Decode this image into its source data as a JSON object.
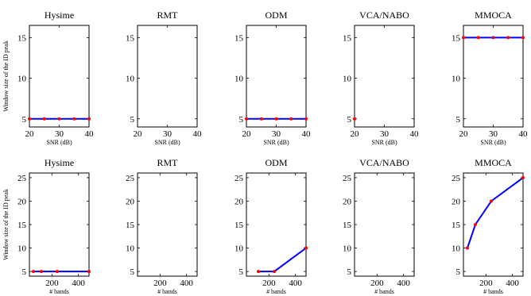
{
  "chart_data": [
    {
      "type": "line",
      "title": "Hysime",
      "xlabel": "SNR (dB)",
      "ylabel": "Window size of the ID peak",
      "xlim": [
        20,
        40
      ],
      "ylim": [
        4,
        16.5
      ],
      "xticks": [
        20,
        30,
        40
      ],
      "yticks": [
        5,
        10,
        15
      ],
      "series": [
        {
          "x": [
            20,
            25,
            30,
            35,
            40
          ],
          "y": [
            5,
            5,
            5,
            5,
            5
          ]
        }
      ]
    },
    {
      "type": "line",
      "title": "RMT",
      "xlabel": "SNR (dB)",
      "ylabel": "",
      "xlim": [
        20,
        40
      ],
      "ylim": [
        4,
        16.5
      ],
      "xticks": [
        20,
        30,
        40
      ],
      "yticks": [
        5,
        10,
        15
      ],
      "series": []
    },
    {
      "type": "line",
      "title": "ODM",
      "xlabel": "SNR (dB)",
      "ylabel": "",
      "xlim": [
        20,
        40
      ],
      "ylim": [
        4,
        16.5
      ],
      "xticks": [
        20,
        30,
        40
      ],
      "yticks": [
        5,
        10,
        15
      ],
      "series": [
        {
          "x": [
            20,
            25,
            30,
            35,
            40
          ],
          "y": [
            5,
            5,
            5,
            5,
            5
          ]
        }
      ]
    },
    {
      "type": "line",
      "title": "VCA/NABO",
      "xlabel": "SNR (dB)",
      "ylabel": "",
      "xlim": [
        20,
        40
      ],
      "ylim": [
        4,
        16.5
      ],
      "xticks": [
        20,
        30,
        40
      ],
      "yticks": [
        5,
        10,
        15
      ],
      "series": [
        {
          "x": [
            20
          ],
          "y": [
            5
          ]
        }
      ]
    },
    {
      "type": "line",
      "title": "MMOCA",
      "xlabel": "SNR (dB)",
      "ylabel": "",
      "xlim": [
        20,
        40
      ],
      "ylim": [
        4,
        16.5
      ],
      "xticks": [
        20,
        30,
        40
      ],
      "yticks": [
        5,
        10,
        15
      ],
      "series": [
        {
          "x": [
            20,
            25,
            30,
            35,
            40
          ],
          "y": [
            15,
            15,
            15,
            15,
            15
          ]
        }
      ]
    },
    {
      "type": "line",
      "title": "Hysime",
      "xlabel": "# bands",
      "ylabel": "Window size of the ID peak",
      "xlim": [
        30,
        480
      ],
      "ylim": [
        4,
        26
      ],
      "xticks": [
        200,
        400
      ],
      "yticks": [
        5,
        10,
        15,
        20,
        25
      ],
      "series": [
        {
          "x": [
            60,
            120,
            240,
            480
          ],
          "y": [
            5,
            5,
            5,
            5
          ]
        }
      ]
    },
    {
      "type": "line",
      "title": "RMT",
      "xlabel": "# bands",
      "ylabel": "",
      "xlim": [
        30,
        480
      ],
      "ylim": [
        4,
        26
      ],
      "xticks": [
        200,
        400
      ],
      "yticks": [
        5,
        10,
        15,
        20,
        25
      ],
      "series": []
    },
    {
      "type": "line",
      "title": "ODM",
      "xlabel": "# bands",
      "ylabel": "",
      "xlim": [
        30,
        480
      ],
      "ylim": [
        4,
        26
      ],
      "xticks": [
        200,
        400
      ],
      "yticks": [
        5,
        10,
        15,
        20,
        25
      ],
      "series": [
        {
          "x": [
            120,
            240,
            480
          ],
          "y": [
            5,
            5,
            10
          ]
        }
      ]
    },
    {
      "type": "line",
      "title": "VCA/NABO",
      "xlabel": "# bands",
      "ylabel": "",
      "xlim": [
        30,
        480
      ],
      "ylim": [
        4,
        26
      ],
      "xticks": [
        200,
        400
      ],
      "yticks": [
        5,
        10,
        15,
        20,
        25
      ],
      "series": []
    },
    {
      "type": "line",
      "title": "MMOCA",
      "xlabel": "# bands",
      "ylabel": "",
      "xlim": [
        30,
        480
      ],
      "ylim": [
        4,
        26
      ],
      "xticks": [
        200,
        400
      ],
      "yticks": [
        5,
        10,
        15,
        20,
        25
      ],
      "series": [
        {
          "x": [
            60,
            120,
            240,
            480
          ],
          "y": [
            10,
            15,
            20,
            25
          ]
        }
      ]
    }
  ],
  "colors": {
    "line": "#0000ff",
    "marker": "#ff0000",
    "axes": "#000000"
  }
}
